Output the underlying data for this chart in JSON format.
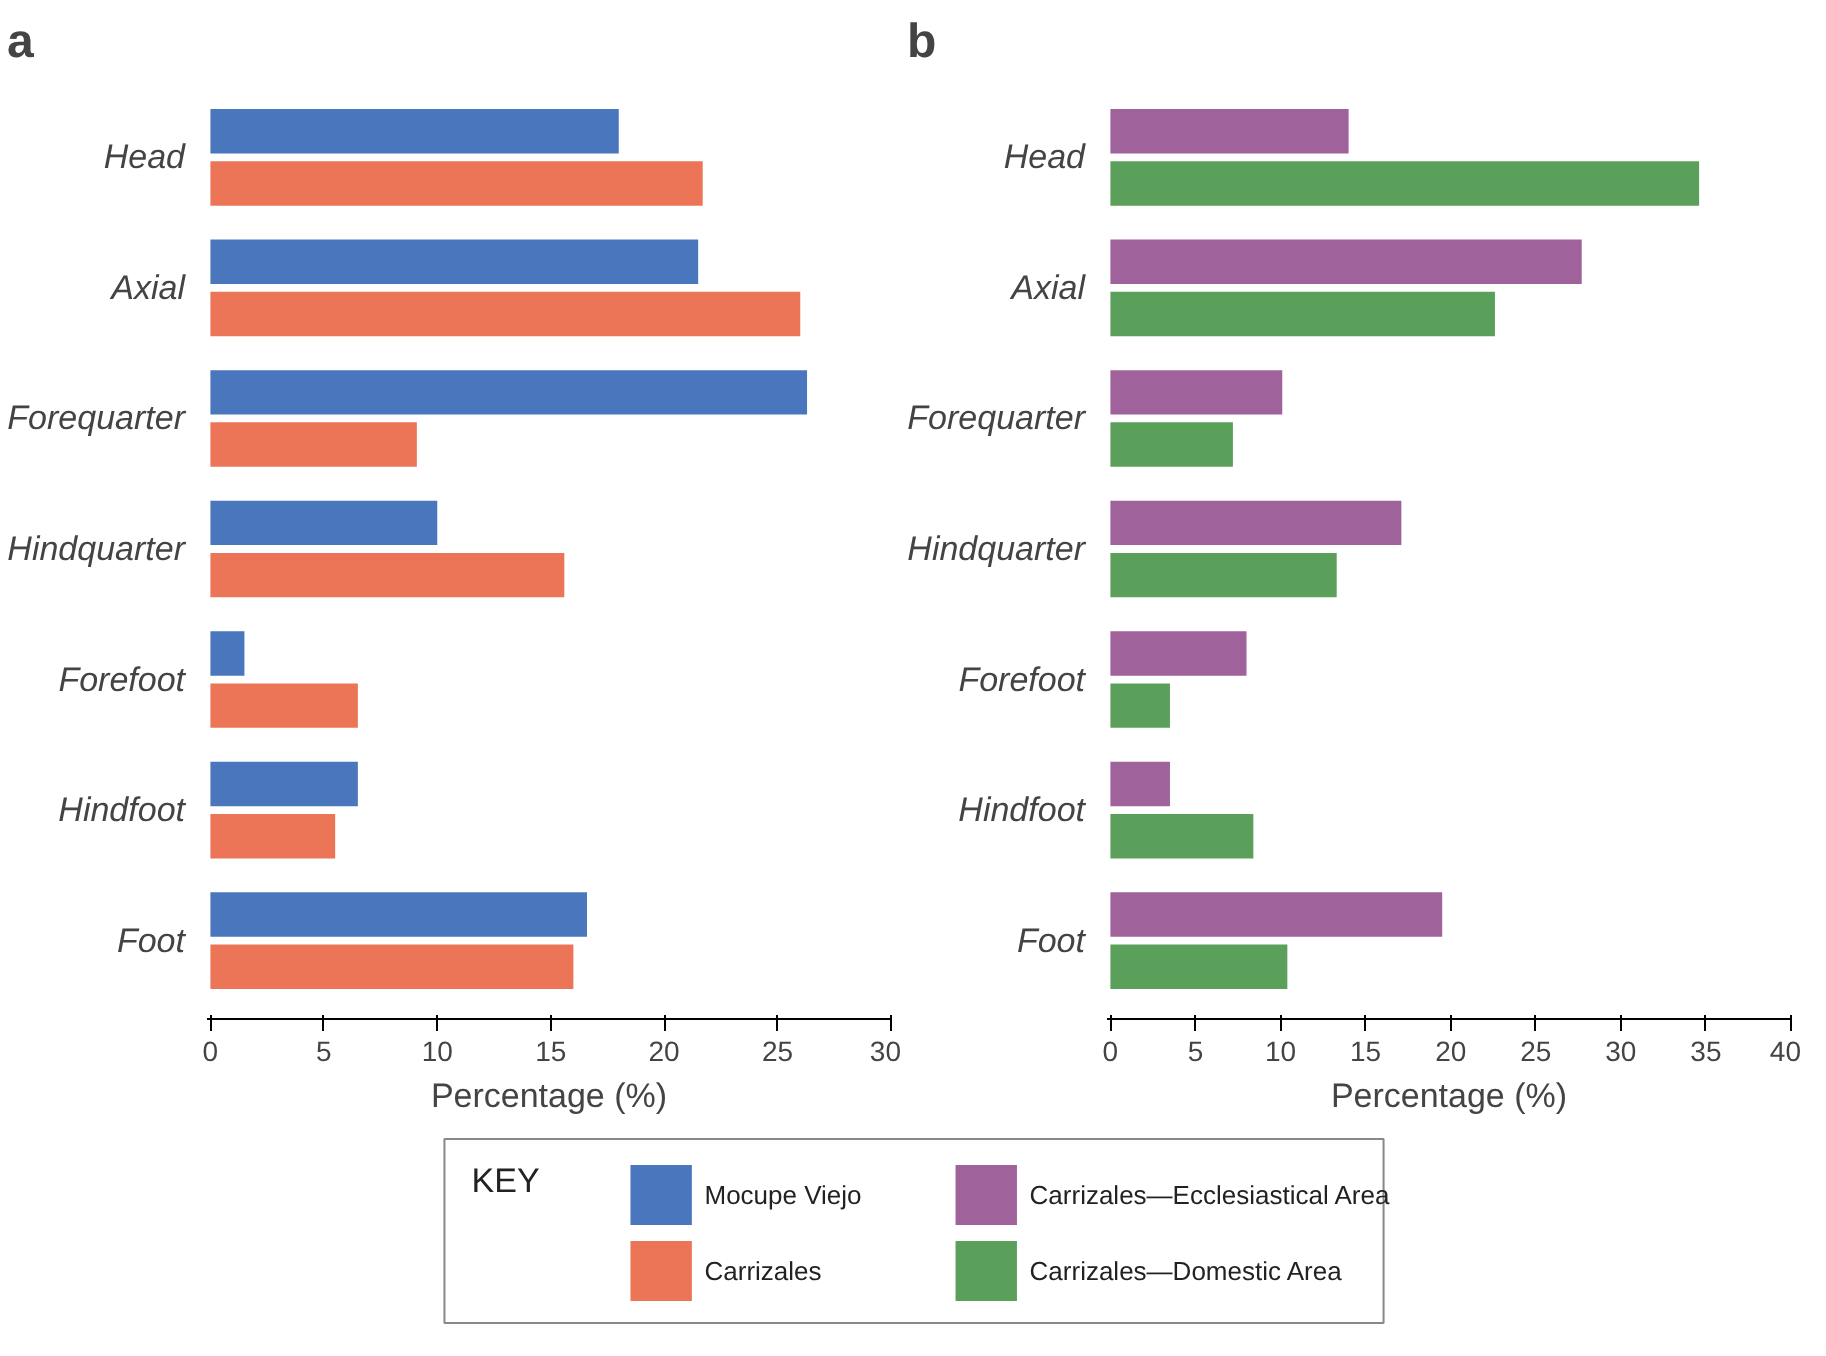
{
  "chart_data": [
    {
      "type": "bar",
      "orientation": "horizontal",
      "title": "a",
      "xlabel": "Percentage (%)",
      "categories": [
        "Head",
        "Axial",
        "Forequarter",
        "Hindquarter",
        "Forefoot",
        "Hindfoot",
        "Foot"
      ],
      "xlim": [
        0,
        30
      ],
      "xticks": [
        0,
        5,
        10,
        15,
        20,
        25,
        30
      ],
      "legend": "bottom",
      "legend_title": "KEY",
      "grid": false,
      "series": [
        {
          "name": "Mocupe Viejo",
          "color": "#4a76bd",
          "values": [
            18.0,
            21.5,
            26.3,
            10.0,
            1.5,
            6.5,
            16.6
          ]
        },
        {
          "name": "Carrizales",
          "color": "#ec7558",
          "values": [
            21.7,
            26.0,
            9.1,
            15.6,
            6.5,
            5.5,
            16.0
          ]
        }
      ]
    },
    {
      "type": "bar",
      "orientation": "horizontal",
      "title": "b",
      "xlabel": "Percentage (%)",
      "categories": [
        "Head",
        "Axial",
        "Forequarter",
        "Hindquarter",
        "Forefoot",
        "Hindfoot",
        "Foot"
      ],
      "xlim": [
        0,
        40
      ],
      "xticks": [
        0,
        5,
        10,
        15,
        20,
        25,
        30,
        35,
        40
      ],
      "legend": "bottom",
      "grid": false,
      "series": [
        {
          "name": "Carrizales—Ecclesiastical Area",
          "color": "#a0629a",
          "values": [
            14.0,
            27.7,
            10.1,
            17.1,
            8.0,
            3.5,
            19.5
          ]
        },
        {
          "name": "Carrizales—Domestic Area",
          "color": "#5aa05a",
          "values": [
            34.6,
            22.6,
            7.2,
            13.3,
            3.5,
            8.4,
            10.4
          ]
        }
      ]
    }
  ]
}
